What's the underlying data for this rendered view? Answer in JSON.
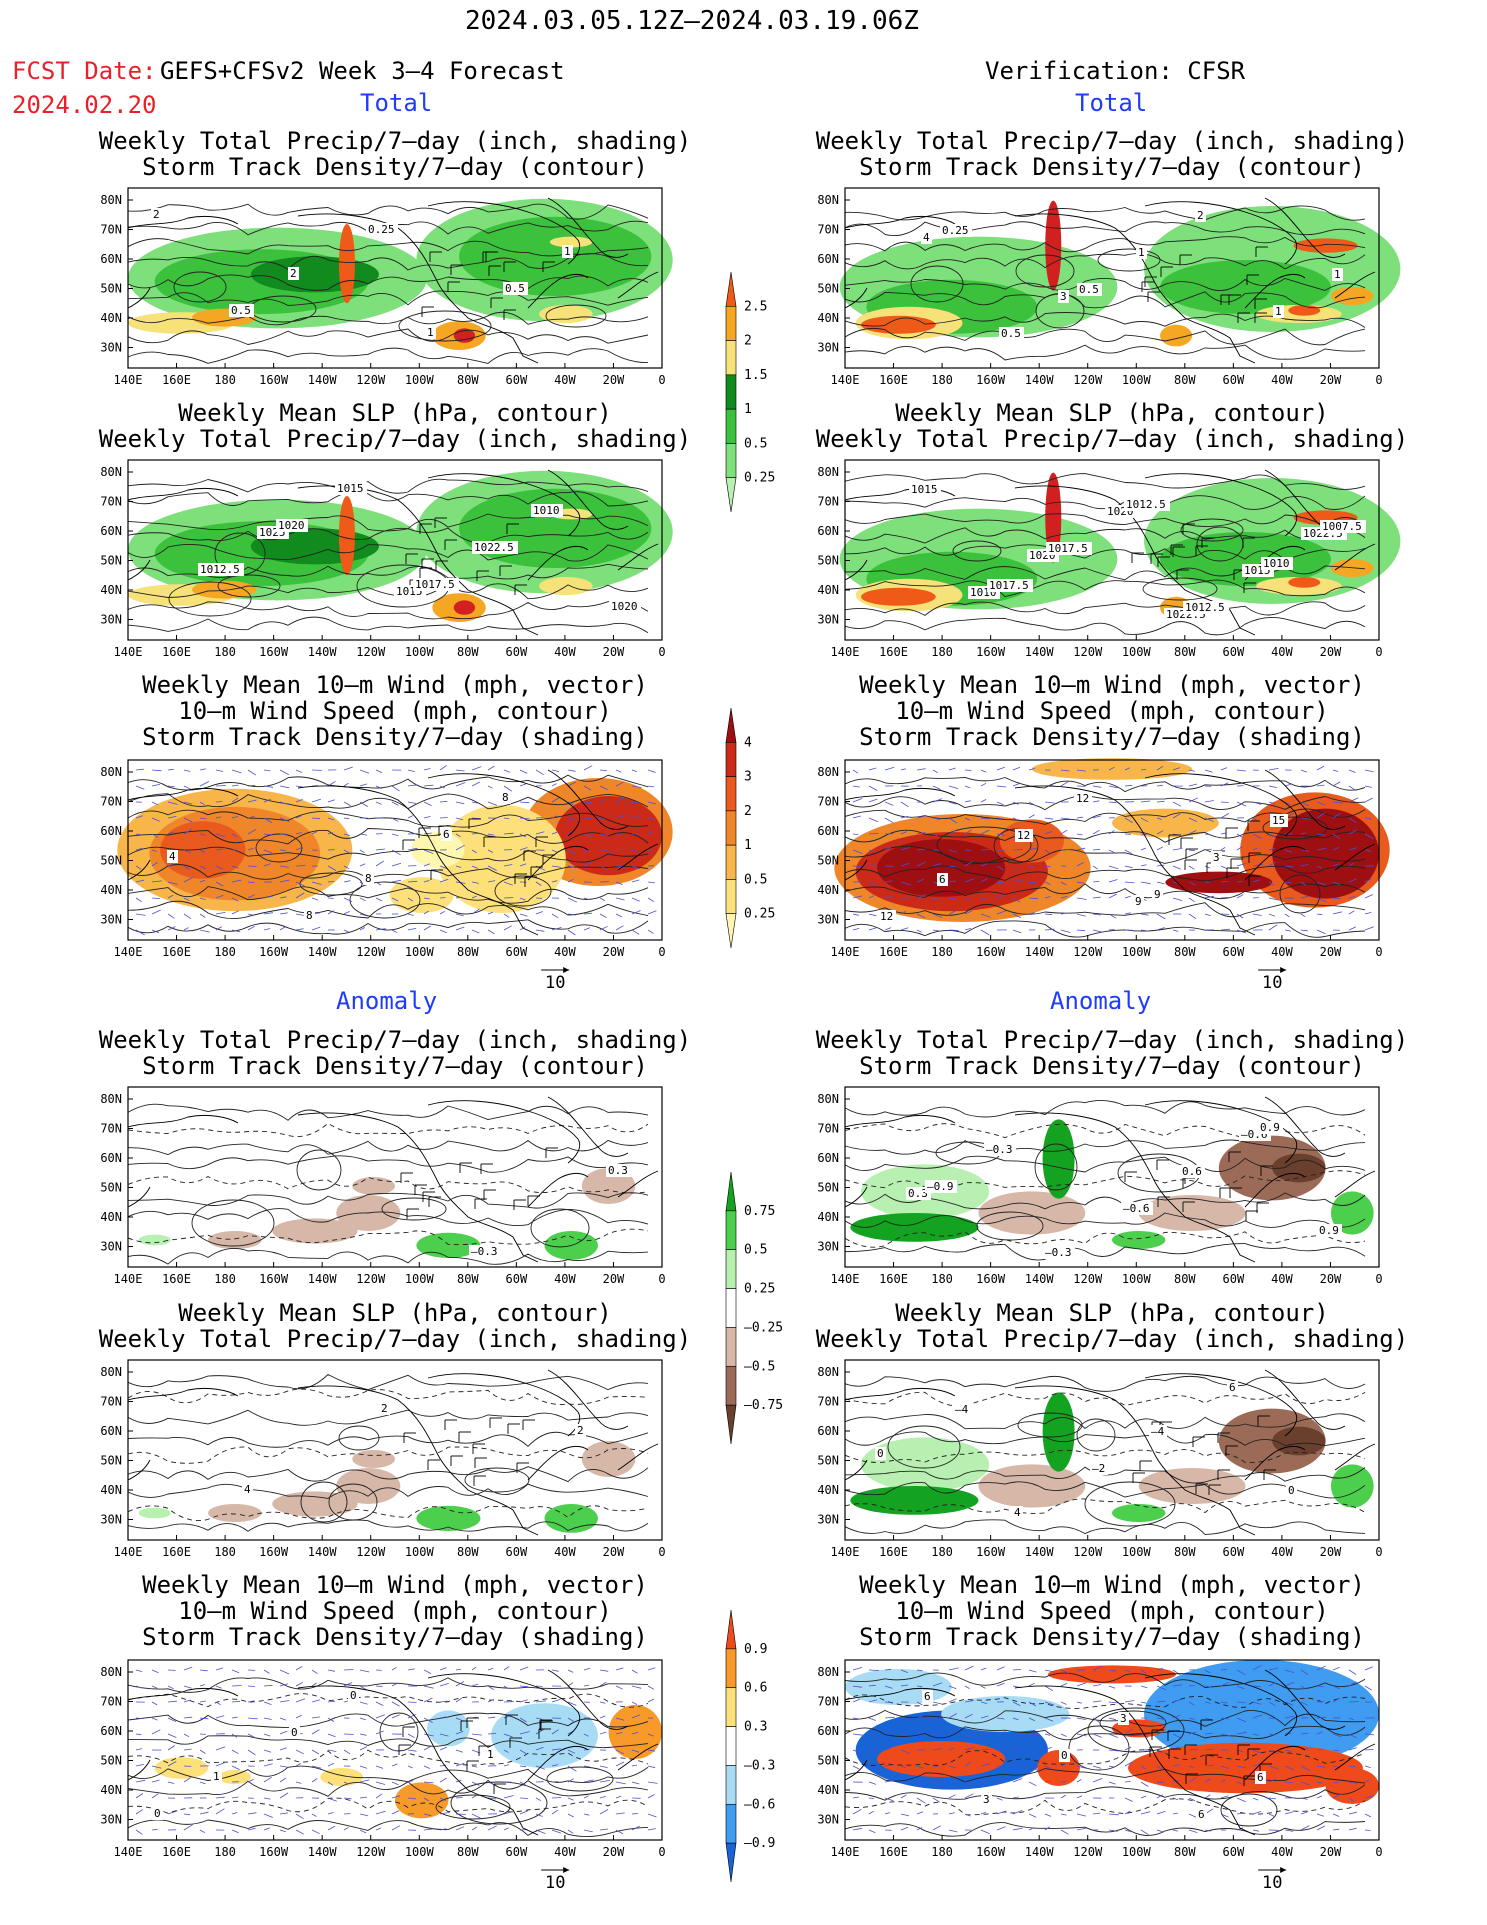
{
  "header": {
    "period": "2024.03.05.12Z–2024.03.19.06Z",
    "fcst_label": "FCST Date:",
    "fcst_model": "GEFS+CFSv2 Week 3–4 Forecast",
    "fcst_date": "2024.02.20",
    "verification": "Verification: CFSR",
    "total_left": "Total",
    "total_right": "Total",
    "anomaly_left": "Anomaly",
    "anomaly_right": "Anomaly"
  },
  "colors": {
    "accent_red": "#e8202a",
    "accent_blue": "#1e3cff",
    "precip_scale": [
      "#b7f0b0",
      "#7de07a",
      "#3cc13c",
      "#118a1e",
      "#f7e27a",
      "#f5a623",
      "#ef5a19",
      "#d21f1f"
    ],
    "storm_scale": [
      "#fff7b0",
      "#fde07a",
      "#f8b64a",
      "#f0862a",
      "#e85a1e",
      "#cc2a18",
      "#9e0f12"
    ],
    "precip_anom_scale": [
      "#6a3f2e",
      "#9b6b57",
      "#d7b8a8",
      "#ffffff",
      "#b7f0b0",
      "#4ccf4c",
      "#13a320"
    ],
    "storm_anom_scale": [
      "#1864d6",
      "#3f9cf0",
      "#a8dcf5",
      "#ffffff",
      "#fde07a",
      "#f79a2a",
      "#ef4a1b"
    ]
  },
  "panels": [
    {
      "id": "L1",
      "title1": "Weekly Total Precip/7–day (inch, shading)",
      "title2": "Storm Track Density/7–day (contour)",
      "title3": "",
      "labels": [
        "2",
        "2",
        "1",
        "1",
        "0.5",
        "0.25",
        "0.5"
      ],
      "arrow_label": ""
    },
    {
      "id": "R1",
      "title1": "Weekly Total Precip/7–day (inch, shading)",
      "title2": "Storm Track Density/7–day (contour)",
      "title3": "",
      "labels": [
        "4",
        "3",
        "2",
        "1",
        "0.5",
        "1",
        "1",
        "0.25",
        "0.5"
      ],
      "arrow_label": ""
    },
    {
      "id": "L2",
      "title1": "Weekly Mean SLP (hPa, contour)",
      "title2": "Weekly Total Precip/7–day (inch, shading)",
      "title3": "",
      "labels": [
        "1025",
        "1015",
        "1010",
        "1012.5",
        "1015",
        "1022.5",
        "1020",
        "1020",
        "1017.5"
      ],
      "arrow_label": ""
    },
    {
      "id": "R2",
      "title1": "Weekly Mean SLP (hPa, contour)",
      "title2": "Weekly Total Precip/7–day (inch, shading)",
      "title3": "",
      "labels": [
        "1020",
        "1022.5",
        "1022.5",
        "1010",
        "1020",
        "1015",
        "1015",
        "1017.5",
        "1012.5",
        "1007.5",
        "1017.5",
        "1012.5",
        "1010"
      ],
      "arrow_label": ""
    },
    {
      "id": "L3",
      "title1": "Weekly Mean 10–m Wind (mph, vector)",
      "title2": "10–m Wind Speed (mph, contour)",
      "title3": "Storm Track Density/7–day (shading)",
      "labels": [
        "8",
        "8",
        "4",
        "8",
        "6"
      ],
      "arrow_label": "10"
    },
    {
      "id": "R3",
      "title1": "Weekly Mean 10–m Wind (mph, vector)",
      "title2": "10–m Wind Speed (mph, contour)",
      "title3": "Storm Track Density/7–day (shading)",
      "labels": [
        "9",
        "15",
        "6",
        "12",
        "3",
        "12",
        "12",
        "9"
      ],
      "arrow_label": "10"
    },
    {
      "id": "L4",
      "title1": "Weekly Total Precip/7–day (inch, shading)",
      "title2": "Storm Track Density/7–day (contour)",
      "title3": "",
      "labels": [
        "–0.3",
        "0.3"
      ],
      "arrow_label": ""
    },
    {
      "id": "R4",
      "title1": "Weekly Total Precip/7–day (inch, shading)",
      "title2": "Storm Track Density/7–day (contour)",
      "title3": "",
      "labels": [
        "–0.6",
        "0.3",
        "–0.3",
        "0.6",
        "0.9",
        "–0.3",
        "–0.6",
        "0.9",
        "–0.9"
      ],
      "arrow_label": ""
    },
    {
      "id": "L5",
      "title1": "Weekly Mean SLP (hPa, contour)",
      "title2": "Weekly Total Precip/7–day (inch, shading)",
      "title3": "",
      "labels": [
        "2",
        "4",
        "2"
      ],
      "arrow_label": ""
    },
    {
      "id": "R5",
      "title1": "Weekly Mean SLP (hPa, contour)",
      "title2": "Weekly Total Precip/7–day (inch, shading)",
      "title3": "",
      "labels": [
        "0",
        "4",
        "–4",
        "0",
        "–4",
        "–2",
        "6"
      ],
      "arrow_label": ""
    },
    {
      "id": "L6",
      "title1": "Weekly Mean 10–m Wind (mph, vector)",
      "title2": "10–m Wind Speed (mph, contour)",
      "title3": "Storm Track Density/7–day (shading)",
      "labels": [
        "1",
        "0",
        "1",
        "0",
        "0"
      ],
      "arrow_label": "10"
    },
    {
      "id": "R6",
      "title1": "Weekly Mean 10–m Wind (mph, vector)",
      "title2": "10–m Wind Speed (mph, contour)",
      "title3": "Storm Track Density/7–day (shading)",
      "labels": [
        "3",
        "3",
        "6",
        "6",
        "0",
        "6"
      ],
      "arrow_label": "10"
    }
  ],
  "axes": {
    "lat_ticks": [
      "80N",
      "70N",
      "60N",
      "50N",
      "40N",
      "30N"
    ],
    "lon_ticks": [
      "140E",
      "160E",
      "180",
      "160W",
      "140W",
      "120W",
      "100W",
      "80W",
      "60W",
      "40W",
      "20W",
      "0"
    ]
  },
  "colorbars": [
    {
      "id": "cb1",
      "ticks": [
        "2.5",
        "2",
        "1.5",
        "1",
        "0.5",
        "0.25"
      ]
    },
    {
      "id": "cb2",
      "ticks": [
        "4",
        "3",
        "2",
        "1",
        "0.5",
        "0.25"
      ]
    },
    {
      "id": "cb3",
      "ticks": [
        "0.75",
        "0.5",
        "0.25",
        "–0.25",
        "–0.5",
        "–0.75"
      ]
    },
    {
      "id": "cb4",
      "ticks": [
        "0.9",
        "0.6",
        "0.3",
        "–0.3",
        "–0.6",
        "–0.9"
      ]
    }
  ],
  "chart_data": [
    {
      "type": "heatmap",
      "title": "Weekly Total Precip/7–day (inch, shading) / Storm Track Density/7–day (contour)",
      "panel": "GEFS+CFSv2 Week 3–4 Forecast – Total",
      "x_ticks": [
        "140E",
        "160E",
        "180",
        "160W",
        "140W",
        "120W",
        "100W",
        "80W",
        "60W",
        "40W",
        "20W",
        "0"
      ],
      "y_ticks": [
        "80N",
        "70N",
        "60N",
        "50N",
        "40N",
        "30N"
      ],
      "shading_levels": [
        0.25,
        0.5,
        1,
        1.5,
        2,
        2.5
      ],
      "contour_labels": [
        2,
        2,
        1,
        1,
        0.5,
        0.25,
        0.5
      ]
    },
    {
      "type": "heatmap",
      "title": "Weekly Total Precip/7–day (inch, shading) / Storm Track Density/7–day (contour)",
      "panel": "Verification: CFSR – Total",
      "shading_levels": [
        0.25,
        0.5,
        1,
        1.5,
        2,
        2.5
      ],
      "contour_labels": [
        4,
        3,
        2,
        1,
        0.5,
        1,
        1,
        0.25,
        0.5
      ]
    },
    {
      "type": "heatmap",
      "title": "Weekly Mean SLP (hPa, contour) / Weekly Total Precip/7–day (inch, shading)",
      "panel": "GEFS+CFSv2 Week 3–4 Forecast – Total",
      "shading_levels": [
        0.25,
        0.5,
        1,
        1.5,
        2,
        2.5
      ],
      "contour_labels": [
        1025,
        1015,
        1010,
        1012.5,
        1015,
        1022.5,
        1020,
        1020,
        1017.5
      ]
    },
    {
      "type": "heatmap",
      "title": "Weekly Mean SLP (hPa, contour) / Weekly Total Precip/7–day (inch, shading)",
      "panel": "Verification: CFSR – Total",
      "shading_levels": [
        0.25,
        0.5,
        1,
        1.5,
        2,
        2.5
      ],
      "contour_labels": [
        1020,
        1022.5,
        1022.5,
        1010,
        1020,
        1015,
        1015,
        1017.5,
        1012.5,
        1007.5,
        1017.5,
        1012.5,
        1010
      ]
    },
    {
      "type": "heatmap",
      "title": "Weekly Mean 10–m Wind (mph, vector) / 10–m Wind Speed (mph, contour) / Storm Track Density/7–day (shading)",
      "panel": "GEFS+CFSv2 Week 3–4 Forecast – Total",
      "shading_levels": [
        0.25,
        0.5,
        1,
        2,
        3,
        4
      ],
      "contour_labels": [
        8,
        8,
        4,
        8,
        6
      ],
      "reference_vector": 10
    },
    {
      "type": "heatmap",
      "title": "Weekly Mean 10–m Wind (mph, vector) / 10–m Wind Speed (mph, contour) / Storm Track Density/7–day (shading)",
      "panel": "Verification: CFSR – Total",
      "shading_levels": [
        0.25,
        0.5,
        1,
        2,
        3,
        4
      ],
      "contour_labels": [
        9,
        15,
        6,
        12,
        3,
        12,
        12,
        9
      ],
      "reference_vector": 10
    },
    {
      "type": "heatmap",
      "title": "Weekly Total Precip/7–day (inch, shading) / Storm Track Density/7–day (contour)",
      "panel": "GEFS+CFSv2 Week 3–4 Forecast – Anomaly",
      "shading_levels": [
        -0.75,
        -0.5,
        -0.25,
        0.25,
        0.5,
        0.75
      ],
      "contour_labels": [
        -0.3,
        0.3
      ]
    },
    {
      "type": "heatmap",
      "title": "Weekly Total Precip/7–day (inch, shading) / Storm Track Density/7–day (contour)",
      "panel": "Verification: CFSR – Anomaly",
      "shading_levels": [
        -0.75,
        -0.5,
        -0.25,
        0.25,
        0.5,
        0.75
      ],
      "contour_labels": [
        -0.6,
        0.3,
        -0.3,
        0.6,
        0.9,
        -0.3,
        -0.6,
        0.9,
        -0.9
      ]
    },
    {
      "type": "heatmap",
      "title": "Weekly Mean SLP (hPa, contour) / Weekly Total Precip/7–day (inch, shading)",
      "panel": "GEFS+CFSv2 Week 3–4 Forecast – Anomaly",
      "shading_levels": [
        -0.75,
        -0.5,
        -0.25,
        0.25,
        0.5,
        0.75
      ],
      "contour_labels": [
        2,
        4,
        2
      ]
    },
    {
      "type": "heatmap",
      "title": "Weekly Mean SLP (hPa, contour) / Weekly Total Precip/7–day (inch, shading)",
      "panel": "Verification: CFSR – Anomaly",
      "shading_levels": [
        -0.75,
        -0.5,
        -0.25,
        0.25,
        0.5,
        0.75
      ],
      "contour_labels": [
        0,
        4,
        -4,
        0,
        -4,
        -2,
        6
      ]
    },
    {
      "type": "heatmap",
      "title": "Weekly Mean 10–m Wind (mph, vector) / 10–m Wind Speed (mph, contour) / Storm Track Density/7–day (shading)",
      "panel": "GEFS+CFSv2 Week 3–4 Forecast – Anomaly",
      "shading_levels": [
        -0.9,
        -0.6,
        -0.3,
        0.3,
        0.6,
        0.9
      ],
      "contour_labels": [
        1,
        0,
        1,
        0,
        0
      ],
      "reference_vector": 10
    },
    {
      "type": "heatmap",
      "title": "Weekly Mean 10–m Wind (mph, vector) / 10–m Wind Speed (mph, contour) / Storm Track Density/7–day (shading)",
      "panel": "Verification: CFSR – Anomaly",
      "shading_levels": [
        -0.9,
        -0.6,
        -0.3,
        0.3,
        0.6,
        0.9
      ],
      "contour_labels": [
        3,
        3,
        6,
        6,
        0,
        6
      ],
      "reference_vector": 10
    }
  ]
}
